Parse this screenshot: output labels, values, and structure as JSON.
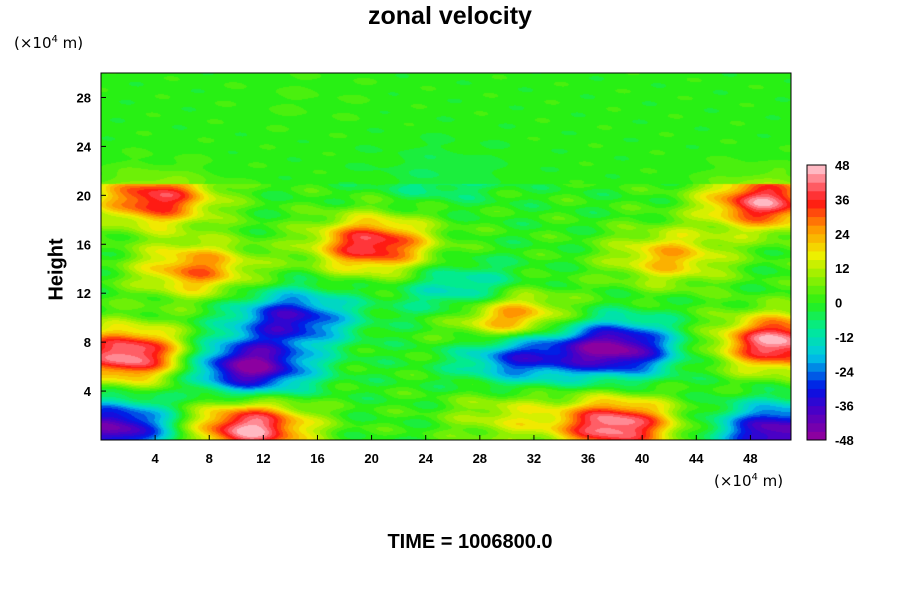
{
  "title": "zonal velocity",
  "y_unit": {
    "prefix": "(×10",
    "exp": "4",
    "suffix": " m)"
  },
  "x_unit": {
    "prefix": "(×10",
    "exp": "4",
    "suffix": " m)"
  },
  "ylabel": "Height",
  "time_label": "TIME = 1006800.0",
  "chart_data": {
    "type": "heatmap",
    "title": "zonal velocity",
    "xlabel": "",
    "ylabel": "Height",
    "x_unit": "×10^4 m",
    "y_unit": "×10^4 m",
    "xlim": [
      0,
      51
    ],
    "ylim": [
      0,
      30
    ],
    "x_ticks": [
      4,
      8,
      12,
      16,
      20,
      24,
      28,
      32,
      36,
      40,
      44,
      48
    ],
    "y_ticks": [
      4,
      8,
      12,
      16,
      20,
      24,
      28
    ],
    "colorbar": {
      "range": [
        -48,
        48
      ],
      "ticks": [
        48,
        36,
        24,
        12,
        0,
        -12,
        -24,
        -36,
        -48
      ],
      "colormap": "rainbow (purple = -48, green = 0, pink = +48)"
    },
    "features": [
      {
        "x": 2,
        "y": 7,
        "value": 48
      },
      {
        "x": 11,
        "y": 6,
        "value": -48
      },
      {
        "x": 11,
        "y": 1,
        "value": 48
      },
      {
        "x": 1,
        "y": 1,
        "value": -44
      },
      {
        "x": 14,
        "y": 10,
        "value": -36
      },
      {
        "x": 20,
        "y": 16,
        "value": 42
      },
      {
        "x": 7,
        "y": 14,
        "value": 30
      },
      {
        "x": 38,
        "y": 7.5,
        "value": -48
      },
      {
        "x": 31,
        "y": 7,
        "value": -34
      },
      {
        "x": 50,
        "y": 8,
        "value": 48
      },
      {
        "x": 49,
        "y": 19.5,
        "value": 44
      },
      {
        "x": 38,
        "y": 1.2,
        "value": 48
      },
      {
        "x": 50,
        "y": 0.7,
        "value": -44
      },
      {
        "x": 30,
        "y": 10,
        "value": 36
      },
      {
        "x": 4,
        "y": 19.8,
        "value": 40
      },
      {
        "x": 42,
        "y": 15,
        "value": 24
      },
      {
        "x": 30,
        "y": 2,
        "value": 14
      },
      {
        "x": 15,
        "y": 28,
        "value": 4
      },
      {
        "x": 25,
        "y": 22,
        "value": -12
      },
      {
        "x": 27,
        "y": 12,
        "value": -20
      }
    ]
  }
}
